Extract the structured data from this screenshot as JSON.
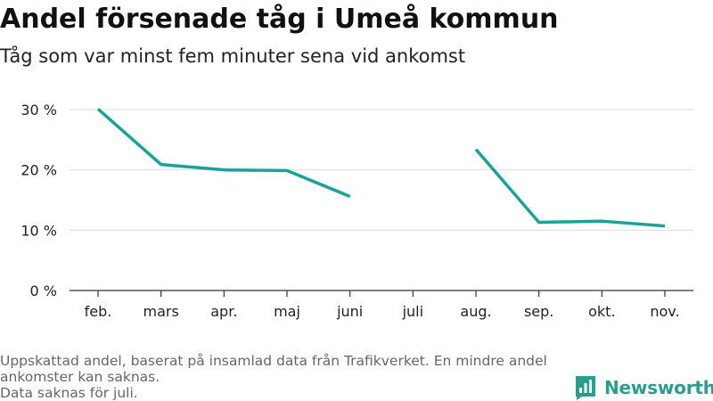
{
  "title": "Andel försenade tåg i Umeå kommun",
  "subtitle": "Tåg som var minst fem minuter sena vid ankomst",
  "footer": {
    "line1": "Uppskattad andel, baserat på insamlad data från Trafikverket. En mindre andel",
    "line2": "ankomster kan saknas.",
    "line3": "Data saknas för juli."
  },
  "brand": {
    "name": "Newsworthy",
    "icon": "bar-chart-logo-icon"
  },
  "colors": {
    "line": "#17a398",
    "grid": "#dddddd",
    "axis": "#333333",
    "text": "#222222",
    "brand": "#2a9d8f"
  },
  "chart_data": {
    "type": "line",
    "title": "Andel försenade tåg i Umeå kommun",
    "subtitle": "Tåg som var minst fem minuter sena vid ankomst",
    "categories": [
      "feb.",
      "mars",
      "apr.",
      "maj",
      "juni",
      "juli",
      "aug.",
      "sep.",
      "okt.",
      "nov."
    ],
    "series": [
      {
        "values": [
          30.1,
          20.9,
          20.0,
          19.9,
          15.6,
          null,
          23.4,
          11.3,
          11.5,
          10.7
        ]
      }
    ],
    "yticks": [
      0,
      10,
      20,
      30
    ],
    "ytick_labels": [
      "0 %",
      "10 %",
      "20 %",
      "30 %"
    ],
    "ylim": [
      0,
      30
    ],
    "grid": true,
    "legend": "none"
  }
}
